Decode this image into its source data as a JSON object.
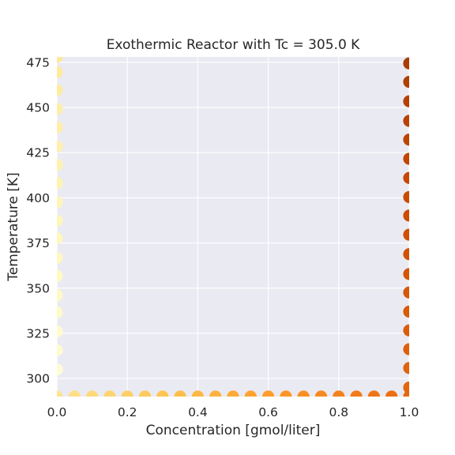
{
  "chart_data": {
    "type": "scatter",
    "title": "Exothermic Reactor with Tc = 305.0 K",
    "xlabel": "Concentration [gmol/liter]",
    "ylabel": "Temperature [K]",
    "xlim": [
      0.0,
      1.0
    ],
    "ylim": [
      290,
      478
    ],
    "xticks": [
      0.0,
      0.2,
      0.4,
      0.6,
      0.8,
      1.0
    ],
    "xtick_labels": [
      "0.0",
      "0.2",
      "0.4",
      "0.6",
      "0.8",
      "1.0"
    ],
    "yticks": [
      300,
      325,
      350,
      375,
      400,
      425,
      450,
      475
    ],
    "ytick_labels": [
      "300",
      "325",
      "350",
      "375",
      "400",
      "425",
      "450",
      "475"
    ],
    "grid": true,
    "colormap": "YlOrBr",
    "background_color": "#EAEAF2",
    "grid_color": "#FFFFFF",
    "series": [
      {
        "values": [
          {
            "x": 0.0,
            "y": 305.0,
            "c": 0.05
          },
          {
            "x": 0.0,
            "y": 315.6,
            "c": 0.06
          },
          {
            "x": 0.0,
            "y": 326.0,
            "c": 0.07
          },
          {
            "x": 0.0,
            "y": 336.6,
            "c": 0.08
          },
          {
            "x": 0.0,
            "y": 346.0,
            "c": 0.09
          },
          {
            "x": 0.0,
            "y": 356.8,
            "c": 0.1
          },
          {
            "x": 0.0,
            "y": 366.8,
            "c": 0.11
          },
          {
            "x": 0.0,
            "y": 377.6,
            "c": 0.12
          },
          {
            "x": 0.0,
            "y": 387.4,
            "c": 0.13
          },
          {
            "x": 0.0,
            "y": 397.6,
            "c": 0.14
          },
          {
            "x": 0.0,
            "y": 408.2,
            "c": 0.15
          },
          {
            "x": 0.0,
            "y": 418.2,
            "c": 0.16
          },
          {
            "x": 0.0,
            "y": 428.4,
            "c": 0.17
          },
          {
            "x": 0.0,
            "y": 439.0,
            "c": 0.18
          },
          {
            "x": 0.0,
            "y": 449.2,
            "c": 0.19
          },
          {
            "x": 0.0,
            "y": 459.6,
            "c": 0.2
          },
          {
            "x": 0.0,
            "y": 469.6,
            "c": 0.21
          },
          {
            "x": 0.0,
            "y": 478.0,
            "c": 0.22
          },
          {
            "x": 0.0,
            "y": 290.0,
            "c": 0.25
          },
          {
            "x": 0.05,
            "y": 290.0,
            "c": 0.27
          },
          {
            "x": 0.1,
            "y": 290.0,
            "c": 0.29
          },
          {
            "x": 0.15,
            "y": 290.0,
            "c": 0.31
          },
          {
            "x": 0.2,
            "y": 290.0,
            "c": 0.33
          },
          {
            "x": 0.25,
            "y": 290.0,
            "c": 0.35
          },
          {
            "x": 0.3,
            "y": 290.0,
            "c": 0.37
          },
          {
            "x": 0.35,
            "y": 290.0,
            "c": 0.39
          },
          {
            "x": 0.4,
            "y": 290.0,
            "c": 0.41
          },
          {
            "x": 0.45,
            "y": 290.0,
            "c": 0.43
          },
          {
            "x": 0.5,
            "y": 290.0,
            "c": 0.45
          },
          {
            "x": 0.55,
            "y": 290.0,
            "c": 0.47
          },
          {
            "x": 0.6,
            "y": 290.0,
            "c": 0.49
          },
          {
            "x": 0.65,
            "y": 290.0,
            "c": 0.51
          },
          {
            "x": 0.7,
            "y": 290.0,
            "c": 0.53
          },
          {
            "x": 0.75,
            "y": 290.0,
            "c": 0.55
          },
          {
            "x": 0.8,
            "y": 290.0,
            "c": 0.57
          },
          {
            "x": 0.85,
            "y": 290.0,
            "c": 0.59
          },
          {
            "x": 0.9,
            "y": 290.0,
            "c": 0.61
          },
          {
            "x": 0.95,
            "y": 290.0,
            "c": 0.63
          },
          {
            "x": 1.0,
            "y": 290.0,
            "c": 0.65
          },
          {
            "x": 1.0,
            "y": 295.0,
            "c": 0.66
          },
          {
            "x": 1.0,
            "y": 305.8,
            "c": 0.67
          },
          {
            "x": 1.0,
            "y": 316.2,
            "c": 0.68
          },
          {
            "x": 1.0,
            "y": 326.6,
            "c": 0.69
          },
          {
            "x": 1.0,
            "y": 337.0,
            "c": 0.7
          },
          {
            "x": 1.0,
            "y": 347.6,
            "c": 0.71
          },
          {
            "x": 1.0,
            "y": 357.8,
            "c": 0.72
          },
          {
            "x": 1.0,
            "y": 368.8,
            "c": 0.73
          },
          {
            "x": 1.0,
            "y": 379.6,
            "c": 0.74
          },
          {
            "x": 1.0,
            "y": 390.2,
            "c": 0.75
          },
          {
            "x": 1.0,
            "y": 400.4,
            "c": 0.76
          },
          {
            "x": 1.0,
            "y": 411.0,
            "c": 0.77
          },
          {
            "x": 1.0,
            "y": 421.6,
            "c": 0.78
          },
          {
            "x": 1.0,
            "y": 432.2,
            "c": 0.79
          },
          {
            "x": 1.0,
            "y": 442.6,
            "c": 0.8
          },
          {
            "x": 1.0,
            "y": 453.4,
            "c": 0.81
          },
          {
            "x": 1.0,
            "y": 464.2,
            "c": 0.82
          },
          {
            "x": 1.0,
            "y": 474.4,
            "c": 0.83
          }
        ]
      }
    ]
  }
}
